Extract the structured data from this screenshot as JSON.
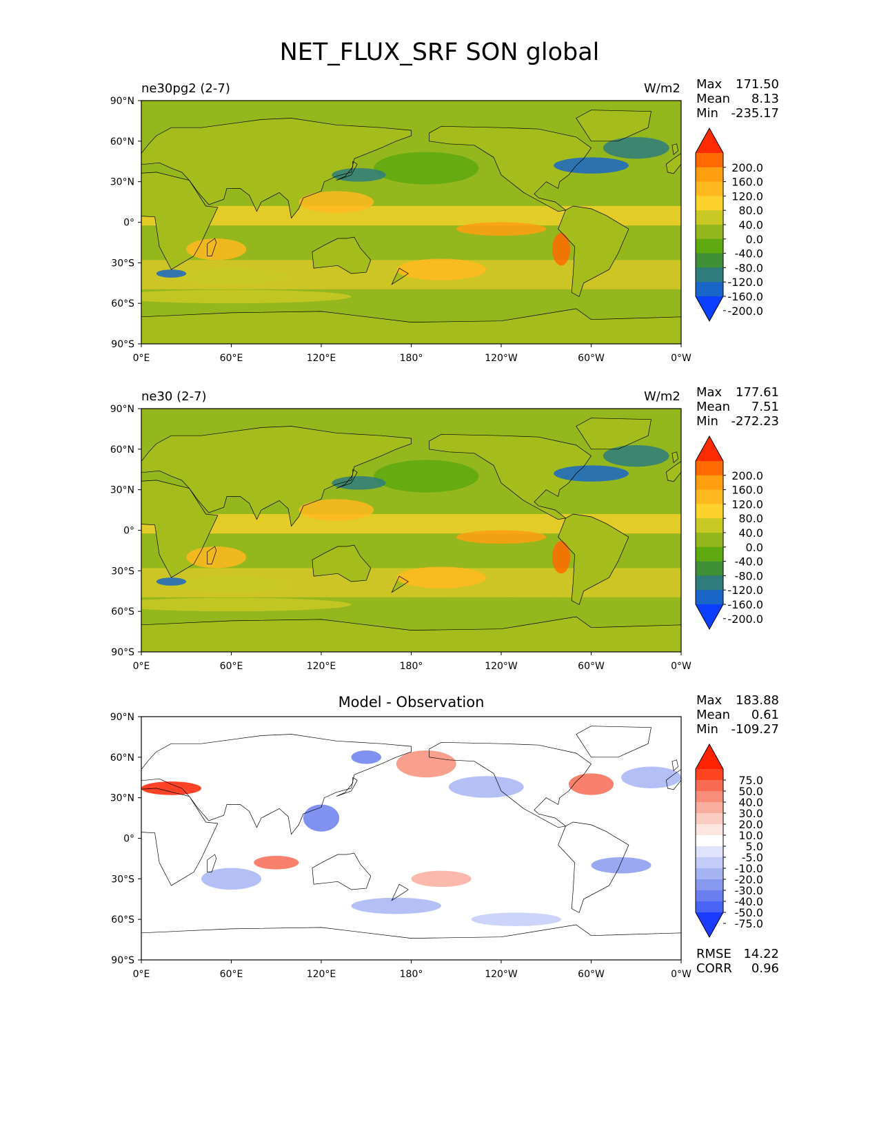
{
  "figure_title": "NET_FLUX_SRF SON global",
  "panels": [
    {
      "left_title": "ne30pg2 (2-7)",
      "center_title": "",
      "units": "W/m2",
      "stats": [
        {
          "label": "Max",
          "value": "171.50"
        },
        {
          "label": "Mean",
          "value": "8.13"
        },
        {
          "label": "Min",
          "value": "-235.17"
        }
      ],
      "bottom_stats": [],
      "colorbar": {
        "labels": [
          "200.0",
          "160.0",
          "120.0",
          "80.0",
          "40.0",
          "0.0",
          "-40.0",
          "-80.0",
          "-120.0",
          "-160.0",
          "-200.0"
        ],
        "colors": [
          "#ff2b00",
          "#ff6a00",
          "#ff9f10",
          "#ffb820",
          "#fdd22c",
          "#c9c925",
          "#93b71d",
          "#5ea910",
          "#3f8f37",
          "#2e7d7c",
          "#1a66c8",
          "#0a3fff"
        ]
      }
    },
    {
      "left_title": "ne30 (2-7)",
      "center_title": "",
      "units": "W/m2",
      "stats": [
        {
          "label": "Max",
          "value": "177.61"
        },
        {
          "label": "Mean",
          "value": "7.51"
        },
        {
          "label": "Min",
          "value": "-272.23"
        }
      ],
      "bottom_stats": [],
      "colorbar": {
        "labels": [
          "200.0",
          "160.0",
          "120.0",
          "80.0",
          "40.0",
          "0.0",
          "-40.0",
          "-80.0",
          "-120.0",
          "-160.0",
          "-200.0"
        ],
        "colors": [
          "#ff2b00",
          "#ff6a00",
          "#ff9f10",
          "#ffb820",
          "#fdd22c",
          "#c9c925",
          "#93b71d",
          "#5ea910",
          "#3f8f37",
          "#2e7d7c",
          "#1a66c8",
          "#0a3fff"
        ]
      }
    },
    {
      "left_title": "",
      "center_title": "Model - Observation",
      "units": "",
      "stats": [
        {
          "label": "Max",
          "value": "183.88"
        },
        {
          "label": "Mean",
          "value": "0.61"
        },
        {
          "label": "Min",
          "value": "-109.27"
        }
      ],
      "bottom_stats": [
        {
          "label": "RMSE",
          "value": "14.22"
        },
        {
          "label": "CORR",
          "value": "0.96"
        }
      ],
      "colorbar": {
        "labels": [
          "75.0",
          "50.0",
          "40.0",
          "30.0",
          "20.0",
          "10.0",
          "5.0",
          "-5.0",
          "-10.0",
          "-20.0",
          "-30.0",
          "-40.0",
          "-50.0",
          "-75.0"
        ],
        "colors": [
          "#ff2200",
          "#ff4422",
          "#f86a52",
          "#f88e7a",
          "#f9ad9e",
          "#fbcdc2",
          "#fde6e0",
          "#ffffff",
          "#dfe3fb",
          "#c3ccf8",
          "#a6b4f3",
          "#8799ef",
          "#6a7ef0",
          "#4963f5",
          "#1b3cff"
        ]
      }
    }
  ],
  "axes": {
    "x_ticks": [
      "0°E",
      "60°E",
      "120°E",
      "180°",
      "120°W",
      "60°W",
      "0°W"
    ],
    "y_ticks": [
      "90°N",
      "60°N",
      "30°N",
      "0°",
      "30°S",
      "60°S",
      "90°S"
    ]
  }
}
